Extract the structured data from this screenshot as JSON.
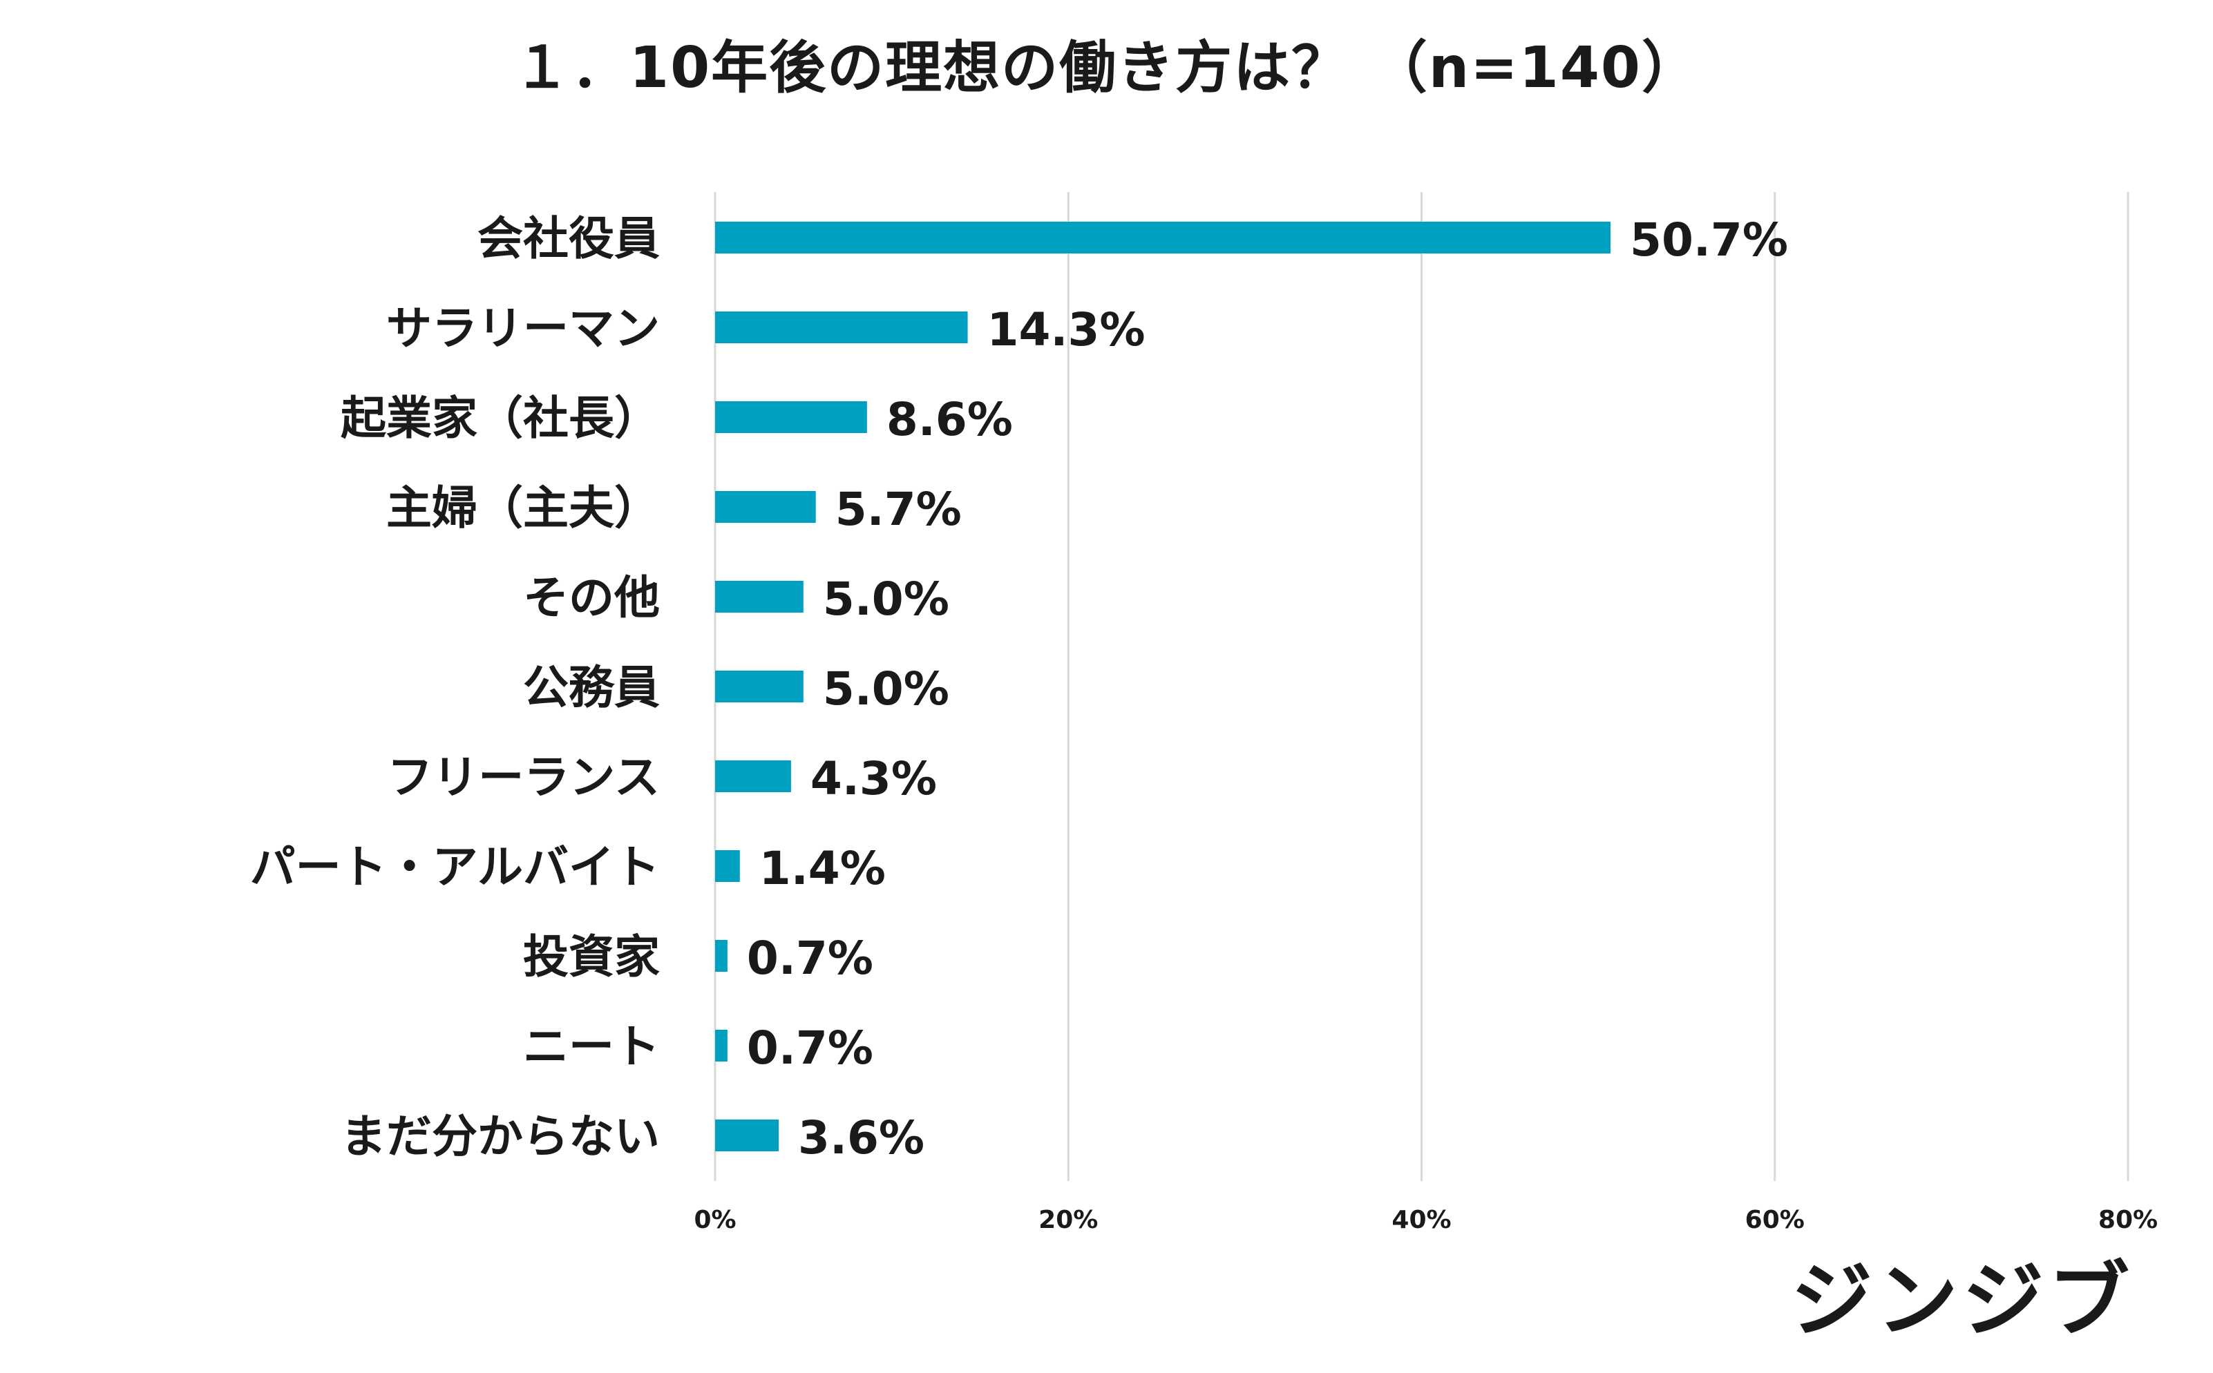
{
  "title": "１．10年後の理想の働き方は？ （n=140）",
  "colors": {
    "bar": "#00A0C0",
    "grid": "#d9d9d9",
    "text": "#1a1a1a"
  },
  "brand": "ジンジブ",
  "chart_data": {
    "type": "bar",
    "orientation": "horizontal",
    "title": "１．10年後の理想の働き方は？ （n=140）",
    "categories": [
      "会社役員",
      "サラリーマン",
      "起業家（社長）",
      "主婦（主夫）",
      "その他",
      "公務員",
      "フリーランス",
      "パート・アルバイト",
      "投資家",
      "ニート",
      "まだ分からない"
    ],
    "values": [
      50.7,
      14.3,
      8.6,
      5.7,
      5.0,
      5.0,
      4.3,
      1.4,
      0.7,
      0.7,
      3.6
    ],
    "value_labels": [
      "50.7%",
      "14.3%",
      "8.6%",
      "5.7%",
      "5.0%",
      "5.0%",
      "4.3%",
      "1.4%",
      "0.7%",
      "0.7%",
      "3.6%"
    ],
    "xlim": [
      0,
      80
    ],
    "xticks": [
      0,
      20,
      40,
      60,
      80
    ],
    "xtick_labels": [
      "0%",
      "20%",
      "40%",
      "60%",
      "80%"
    ],
    "xlabel": "",
    "ylabel": "",
    "grid": true,
    "legend": "none"
  }
}
